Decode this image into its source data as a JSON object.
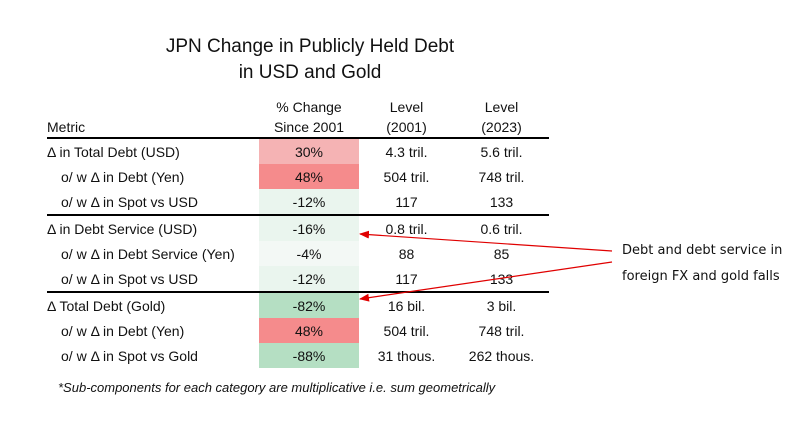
{
  "title": {
    "line1": "JPN Change in Publicly Held Debt",
    "line2": "in USD and Gold"
  },
  "table": {
    "header": {
      "metric": "Metric",
      "pct_line1": "% Change",
      "pct_line2": "Since 2001",
      "l01_line1": "Level",
      "l01_line2": "(2001)",
      "l23_line1": "Level",
      "l23_line2": "(2023)"
    },
    "rows": [
      {
        "label": "Δ in Total Debt (USD)",
        "pct": "30%",
        "l2001": "4.3 tril.",
        "l2023": "5.6 tril."
      },
      {
        "label": "o/ w Δ in Debt (Yen)",
        "pct": "48%",
        "l2001": "504 tril.",
        "l2023": "748 tril."
      },
      {
        "label": "o/ w Δ in Spot vs USD",
        "pct": "-12%",
        "l2001": "117",
        "l2023": "133"
      },
      {
        "label": "Δ in Debt Service (USD)",
        "pct": "-16%",
        "l2001": "0.8 tril.",
        "l2023": "0.6 tril."
      },
      {
        "label": "o/ w Δ in Debt Service (Yen)",
        "pct": "-4%",
        "l2001": "88",
        "l2023": "85"
      },
      {
        "label": "o/ w Δ in Spot vs USD",
        "pct": "-12%",
        "l2001": "117",
        "l2023": "133"
      },
      {
        "label": "Δ Total Debt (Gold)",
        "pct": "-82%",
        "l2001": "16 bil.",
        "l2023": "3 bil."
      },
      {
        "label": "o/ w Δ in Debt (Yen)",
        "pct": "48%",
        "l2001": "504 tril.",
        "l2023": "748 tril."
      },
      {
        "label": "o/ w Δ in Spot vs Gold",
        "pct": "-88%",
        "l2001": "31 thous.",
        "l2023": "262 thous."
      }
    ]
  },
  "footnote": "*Sub-components for each category are multiplicative i.e. sum geometrically",
  "annotation": {
    "line1": "Debt and debt service in",
    "line2": "foreign FX and gold falls"
  },
  "colors": {
    "red_light": "#f5b3b4",
    "red_dark": "#f58b8c",
    "green_light": "#eaf5ee",
    "green_mid": "#b5dfc3",
    "arrow": "#e00000"
  }
}
